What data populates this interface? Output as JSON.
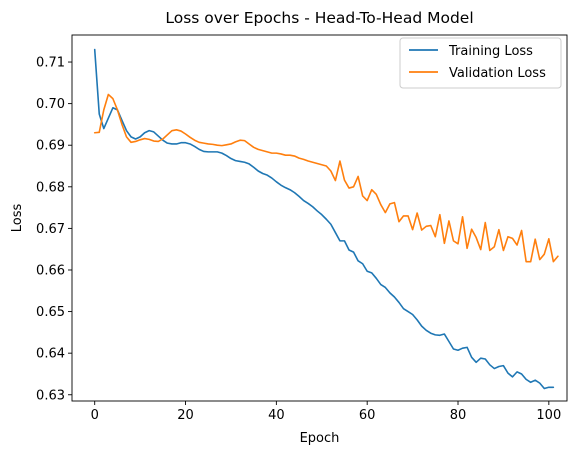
{
  "chart_data": {
    "type": "line",
    "title": "Loss over Epochs - Head-To-Head Model",
    "xlabel": "Epoch",
    "ylabel": "Loss",
    "xlim": [
      -5,
      104
    ],
    "ylim": [
      0.6285,
      0.7165
    ],
    "xticks": [
      0,
      20,
      40,
      60,
      80,
      100
    ],
    "yticks": [
      0.63,
      0.64,
      0.65,
      0.66,
      0.67,
      0.68,
      0.69,
      0.7,
      0.71
    ],
    "ytick_labels": [
      "0.63",
      "0.64",
      "0.65",
      "0.66",
      "0.67",
      "0.68",
      "0.69",
      "0.70",
      "0.71"
    ],
    "grid": false,
    "legend_position": "upper right",
    "series": [
      {
        "name": "Training Loss",
        "color": "#1f77b4",
        "values": [
          0.713,
          0.6975,
          0.694,
          0.6965,
          0.699,
          0.6985,
          0.696,
          0.6935,
          0.692,
          0.6915,
          0.692,
          0.693,
          0.6935,
          0.6932,
          0.6922,
          0.6912,
          0.6905,
          0.6903,
          0.6903,
          0.6906,
          0.6906,
          0.6903,
          0.6897,
          0.689,
          0.6885,
          0.6884,
          0.6884,
          0.6884,
          0.6881,
          0.6875,
          0.6868,
          0.6863,
          0.6861,
          0.6859,
          0.6855,
          0.6847,
          0.6838,
          0.6832,
          0.6828,
          0.6821,
          0.6812,
          0.6804,
          0.6798,
          0.6793,
          0.6786,
          0.6777,
          0.6767,
          0.676,
          0.6752,
          0.6742,
          0.6733,
          0.6722,
          0.671,
          0.669,
          0.667,
          0.667,
          0.6648,
          0.6643,
          0.6622,
          0.6615,
          0.6597,
          0.6593,
          0.658,
          0.6565,
          0.6558,
          0.6545,
          0.6535,
          0.6522,
          0.6507,
          0.65,
          0.6493,
          0.648,
          0.6465,
          0.6455,
          0.6448,
          0.6444,
          0.6443,
          0.6446,
          0.6428,
          0.641,
          0.6407,
          0.6412,
          0.6414,
          0.639,
          0.6378,
          0.6388,
          0.6386,
          0.6372,
          0.6363,
          0.6368,
          0.637,
          0.6352,
          0.6343,
          0.6355,
          0.635,
          0.6337,
          0.633,
          0.6335,
          0.6328,
          0.6315,
          0.6318,
          0.6318
        ]
      },
      {
        "name": "Validation Loss",
        "color": "#ff7f0e",
        "values": [
          0.693,
          0.6931,
          0.6985,
          0.7022,
          0.7012,
          0.6985,
          0.695,
          0.692,
          0.6907,
          0.6909,
          0.6913,
          0.6916,
          0.6914,
          0.691,
          0.6909,
          0.6915,
          0.6925,
          0.6935,
          0.6937,
          0.6934,
          0.6927,
          0.6919,
          0.6912,
          0.6907,
          0.6905,
          0.6903,
          0.6902,
          0.69,
          0.6899,
          0.6901,
          0.6903,
          0.6908,
          0.6912,
          0.6911,
          0.6903,
          0.6895,
          0.689,
          0.6887,
          0.6884,
          0.6881,
          0.6881,
          0.6879,
          0.6876,
          0.6876,
          0.6874,
          0.6869,
          0.6866,
          0.6862,
          0.6859,
          0.6856,
          0.6853,
          0.685,
          0.6838,
          0.6815,
          0.6862,
          0.6816,
          0.6797,
          0.68,
          0.6825,
          0.6778,
          0.6767,
          0.6793,
          0.6782,
          0.6757,
          0.6738,
          0.6759,
          0.6762,
          0.6716,
          0.673,
          0.673,
          0.6697,
          0.6737,
          0.6696,
          0.6705,
          0.6707,
          0.668,
          0.6733,
          0.6664,
          0.6718,
          0.667,
          0.6663,
          0.6728,
          0.6652,
          0.6698,
          0.6678,
          0.6649,
          0.6714,
          0.6647,
          0.6656,
          0.6697,
          0.6647,
          0.668,
          0.6676,
          0.666,
          0.6695,
          0.662,
          0.662,
          0.6674,
          0.6625,
          0.6638,
          0.6675,
          0.662,
          0.6633
        ]
      }
    ]
  }
}
